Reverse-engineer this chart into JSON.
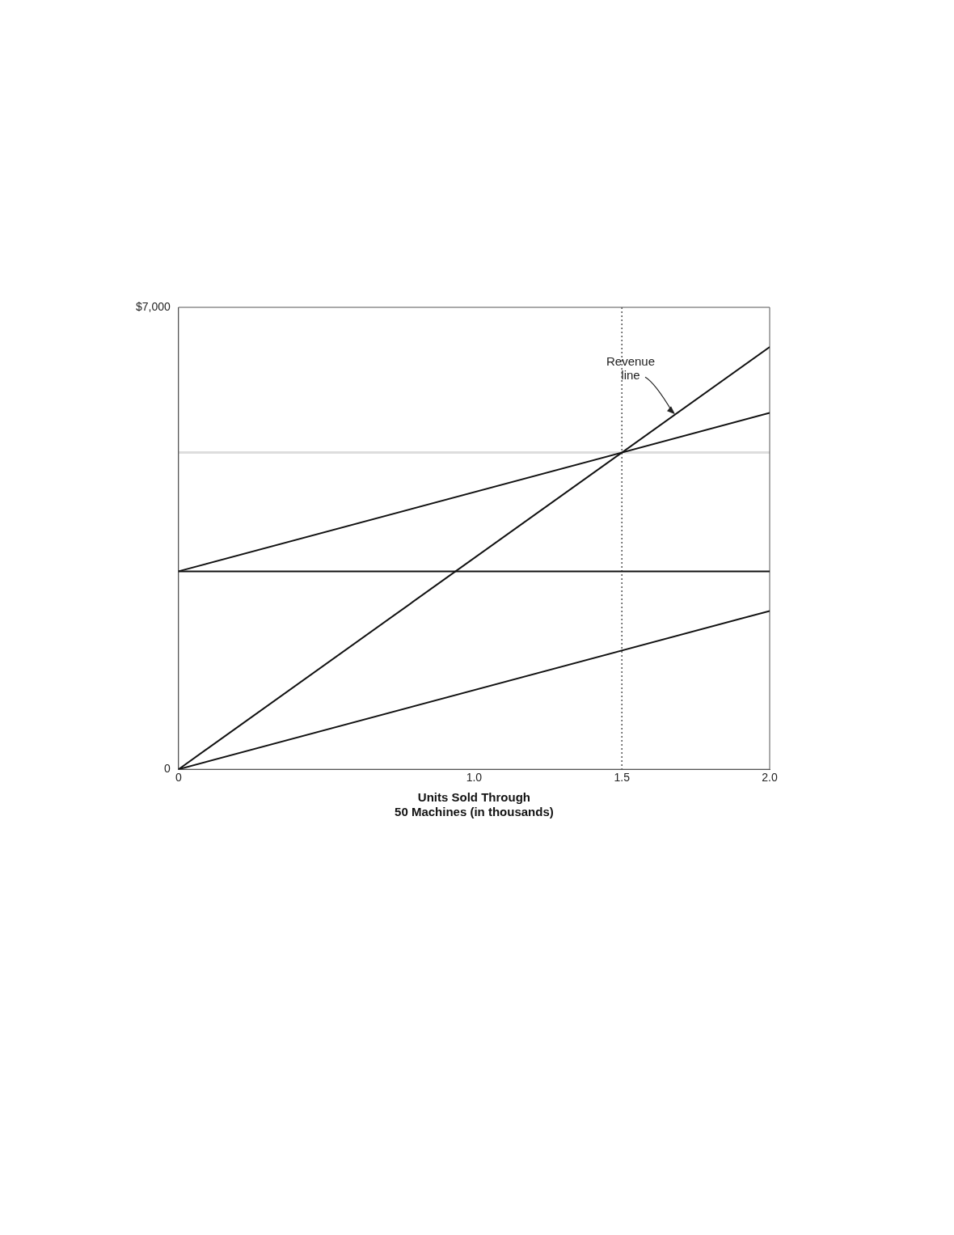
{
  "chart_data": {
    "type": "line",
    "xlabel": "Units Sold Through\n50 Machines (in thousands)",
    "x": [
      0,
      2
    ],
    "series": [
      {
        "color": "#111111",
        "values": [
          0,
          6400
        ]
      },
      {
        "color": "#111111",
        "values": [
          3000,
          5400
        ]
      },
      {
        "color": "#111111",
        "values": [
          3000,
          3000
        ]
      },
      {
        "color": "#111111",
        "values": [
          0,
          2400
        ]
      }
    ],
    "xlim": [
      0,
      2
    ],
    "xticks": [
      0,
      {
        "value": 1,
        "label": "1.0"
      },
      1.5,
      {
        "value": 2,
        "label": "2.0"
      }
    ],
    "ylim": [
      0,
      7000
    ],
    "yticks": [
      0,
      {
        "value": 7000,
        "label": "$7,000"
      }
    ],
    "ref_lines": [
      {
        "axis": "y",
        "value": 4800,
        "color": "#dddddd",
        "line_style": "solid"
      },
      {
        "axis": "x",
        "value": 1.5,
        "color": "#555555",
        "line_style": "dotted"
      }
    ],
    "annotations": [
      {
        "text": "Revenue\nline",
        "x": 1.68,
        "y": 5380
      }
    ],
    "grid": false,
    "legend": false,
    "marker": "none",
    "line_style": "solid"
  }
}
